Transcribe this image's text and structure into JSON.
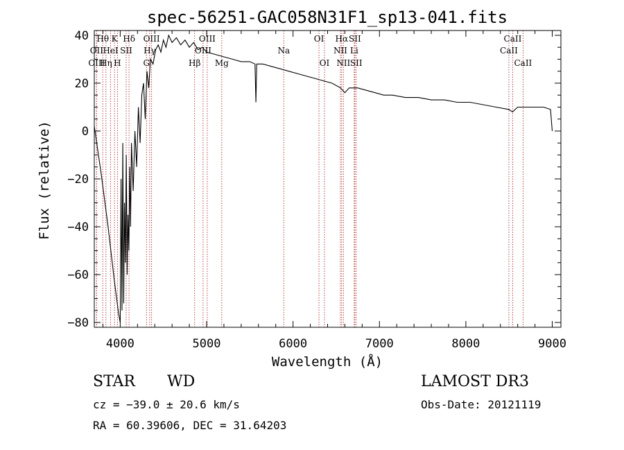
{
  "chart_data": {
    "type": "line",
    "title": "spec-56251-GAC058N31F1_sp13-041.fits",
    "xlabel": "Wavelength (Å)",
    "ylabel": "Flux (relative)",
    "xlim": [
      3700,
      9100
    ],
    "ylim": [
      -82,
      42
    ],
    "xticks": [
      4000,
      5000,
      6000,
      7000,
      8000,
      9000
    ],
    "yticks": [
      -80,
      -60,
      -40,
      -20,
      0,
      20,
      40
    ],
    "ytick_labels": [
      "−80",
      "−60",
      "−40",
      "−20",
      "0",
      "20",
      "40"
    ],
    "series": [
      {
        "name": "flux",
        "points": [
          [
            3700,
            2
          ],
          [
            3780,
            -18
          ],
          [
            3860,
            -40
          ],
          [
            3930,
            -62
          ],
          [
            3980,
            -76
          ],
          [
            4000,
            -80
          ],
          [
            4010,
            -20
          ],
          [
            4020,
            -75
          ],
          [
            4030,
            -5
          ],
          [
            4040,
            -72
          ],
          [
            4050,
            -30
          ],
          [
            4060,
            -55
          ],
          [
            4070,
            -10
          ],
          [
            4080,
            -60
          ],
          [
            4090,
            -35
          ],
          [
            4100,
            -50
          ],
          [
            4110,
            -15
          ],
          [
            4120,
            -40
          ],
          [
            4130,
            -5
          ],
          [
            4150,
            -25
          ],
          [
            4170,
            0
          ],
          [
            4190,
            -15
          ],
          [
            4210,
            10
          ],
          [
            4230,
            -5
          ],
          [
            4250,
            15
          ],
          [
            4270,
            20
          ],
          [
            4290,
            5
          ],
          [
            4310,
            25
          ],
          [
            4330,
            18
          ],
          [
            4350,
            30
          ],
          [
            4380,
            28
          ],
          [
            4410,
            34
          ],
          [
            4440,
            36
          ],
          [
            4470,
            33
          ],
          [
            4500,
            38
          ],
          [
            4530,
            35
          ],
          [
            4560,
            40
          ],
          [
            4600,
            37
          ],
          [
            4650,
            39
          ],
          [
            4700,
            36
          ],
          [
            4750,
            38
          ],
          [
            4800,
            35
          ],
          [
            4850,
            37
          ],
          [
            4900,
            34
          ],
          [
            4950,
            35
          ],
          [
            5000,
            33
          ],
          [
            5100,
            32
          ],
          [
            5200,
            31
          ],
          [
            5300,
            30
          ],
          [
            5400,
            29
          ],
          [
            5500,
            29
          ],
          [
            5560,
            28
          ],
          [
            5570,
            12
          ],
          [
            5580,
            28
          ],
          [
            5650,
            28
          ],
          [
            5750,
            27
          ],
          [
            5850,
            26
          ],
          [
            5950,
            25
          ],
          [
            6050,
            24
          ],
          [
            6150,
            23
          ],
          [
            6250,
            22
          ],
          [
            6350,
            21
          ],
          [
            6450,
            20
          ],
          [
            6550,
            18
          ],
          [
            6600,
            16
          ],
          [
            6650,
            18
          ],
          [
            6750,
            18
          ],
          [
            6850,
            17
          ],
          [
            6950,
            16
          ],
          [
            7050,
            15
          ],
          [
            7150,
            15
          ],
          [
            7300,
            14
          ],
          [
            7450,
            14
          ],
          [
            7600,
            13
          ],
          [
            7750,
            13
          ],
          [
            7900,
            12
          ],
          [
            8050,
            12
          ],
          [
            8200,
            11
          ],
          [
            8350,
            10
          ],
          [
            8500,
            9
          ],
          [
            8540,
            8
          ],
          [
            8600,
            10
          ],
          [
            8700,
            10
          ],
          [
            8800,
            10
          ],
          [
            8900,
            10
          ],
          [
            8980,
            9
          ],
          [
            9000,
            0
          ]
        ]
      }
    ],
    "lines": [
      {
        "name": "Hθ",
        "wave": 3798,
        "row": 0
      },
      {
        "name": "OII",
        "wave": 3727,
        "row": 1
      },
      {
        "name": "OIII",
        "wave": 3727,
        "row": 2
      },
      {
        "name": "K",
        "wave": 3934,
        "row": 0
      },
      {
        "name": "HeI",
        "wave": 3889,
        "row": 1
      },
      {
        "name": "Hη",
        "wave": 3835,
        "row": 2
      },
      {
        "name": "H",
        "wave": 3968,
        "row": 2
      },
      {
        "name": "Hδ",
        "wave": 4102,
        "row": 0
      },
      {
        "name": "SII",
        "wave": 4069,
        "row": 1
      },
      {
        "name": "OIII",
        "wave": 4363,
        "row": 0
      },
      {
        "name": "Hγ",
        "wave": 4341,
        "row": 1
      },
      {
        "name": "G",
        "wave": 4304,
        "row": 2
      },
      {
        "name": "OIII",
        "wave": 5007,
        "row": 0
      },
      {
        "name": "OIII",
        "wave": 4959,
        "row": 1
      },
      {
        "name": "Hβ",
        "wave": 4861,
        "row": 2
      },
      {
        "name": "Mg",
        "wave": 5175,
        "row": 2
      },
      {
        "name": "Na",
        "wave": 5893,
        "row": 1
      },
      {
        "name": "OI",
        "wave": 6300,
        "row": 0
      },
      {
        "name": "OI",
        "wave": 6364,
        "row": 2
      },
      {
        "name": "Hα",
        "wave": 6563,
        "row": 0
      },
      {
        "name": "NII",
        "wave": 6548,
        "row": 1
      },
      {
        "name": "NII",
        "wave": 6583,
        "row": 2
      },
      {
        "name": "SII",
        "wave": 6716,
        "row": 0
      },
      {
        "name": "Li",
        "wave": 6708,
        "row": 1
      },
      {
        "name": "SII",
        "wave": 6731,
        "row": 2
      },
      {
        "name": "CaII",
        "wave": 8542,
        "row": 0
      },
      {
        "name": "CaII",
        "wave": 8498,
        "row": 1
      },
      {
        "name": "CaII",
        "wave": 8662,
        "row": 2
      }
    ],
    "colors": {
      "spectrum": "#000000",
      "lines": "#b03030",
      "axes": "#000000"
    }
  },
  "info": {
    "class_label": "STAR",
    "subclass": "WD",
    "survey": "LAMOST DR3",
    "redshift_line": "cz = −39.0 ± 20.6 km/s",
    "obs_date": "Obs-Date: 20121119",
    "coords": "RA =  60.39606, DEC =  31.64203"
  }
}
